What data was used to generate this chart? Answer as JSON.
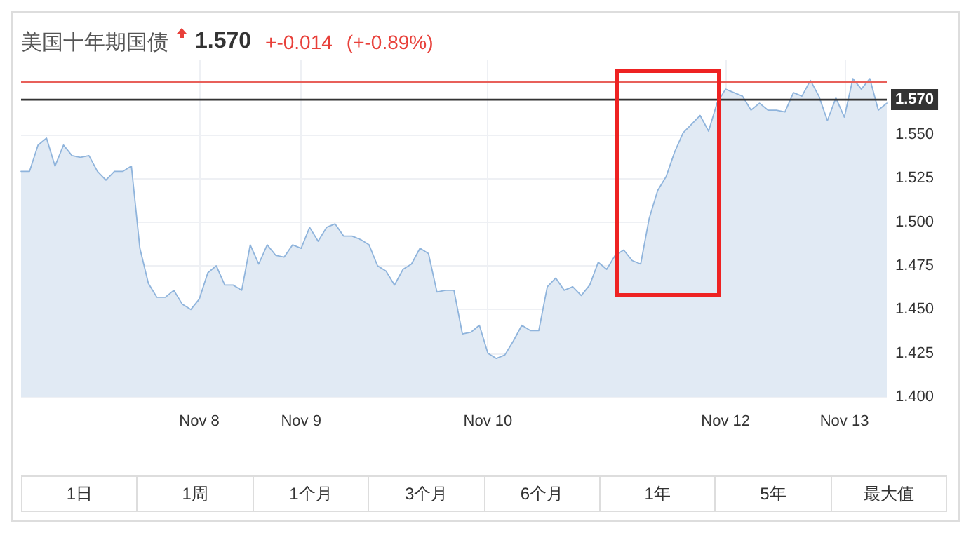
{
  "chart_data": {
    "type": "area",
    "title": "美国十年期国债",
    "annotations": [
      "1.570",
      "+-0.014",
      "(+-0.89%)",
      "1日",
      "1周",
      "1个月",
      "3个月",
      "6个月",
      "1年",
      "5年",
      "最大值"
    ],
    "categories": [
      null,
      null,
      null,
      null,
      null,
      null,
      null,
      null,
      null,
      null,
      null,
      null,
      null,
      null,
      null,
      null,
      null,
      null,
      null,
      null,
      null,
      "Nov 8",
      null,
      null,
      null,
      null,
      null,
      null,
      null,
      null,
      null,
      null,
      null,
      "Nov 9",
      null,
      null,
      null,
      null,
      null,
      null,
      null,
      null,
      null,
      null,
      null,
      null,
      null,
      null,
      null,
      null,
      null,
      null,
      null,
      null,
      null,
      "Nov 10",
      null,
      null,
      null,
      null,
      null,
      null,
      null,
      null,
      null,
      null,
      null,
      null,
      null,
      null,
      null,
      null,
      null,
      null,
      null,
      null,
      null,
      null,
      null,
      null,
      null,
      null,
      null,
      "Nov 12",
      null,
      null,
      null,
      null,
      null,
      null,
      null,
      null,
      null,
      null,
      null,
      null,
      null,
      "Nov 13",
      null,
      null,
      null,
      null,
      null
    ],
    "series": [
      {
        "color": "#8fb4dc",
        "values": [
          1.529,
          1.529,
          1.544,
          1.548,
          1.532,
          1.544,
          1.538,
          1.537,
          1.538,
          1.529,
          1.524,
          1.529,
          1.529,
          1.532,
          1.485,
          1.465,
          1.457,
          1.457,
          1.461,
          1.453,
          1.45,
          1.456,
          1.471,
          1.475,
          1.464,
          1.464,
          1.461,
          1.487,
          1.476,
          1.487,
          1.481,
          1.48,
          1.487,
          1.485,
          1.497,
          1.489,
          1.497,
          1.499,
          1.492,
          1.492,
          1.49,
          1.487,
          1.475,
          1.472,
          1.464,
          1.473,
          1.476,
          1.485,
          1.482,
          1.46,
          1.461,
          1.461,
          1.436,
          1.437,
          1.441,
          1.425,
          1.422,
          1.424,
          1.432,
          1.441,
          1.438,
          1.438,
          1.463,
          1.468,
          1.461,
          1.463,
          1.458,
          1.464,
          1.477,
          1.473,
          1.481,
          1.484,
          1.478,
          1.476,
          1.502,
          1.518,
          1.526,
          1.54,
          1.551,
          1.556,
          1.561,
          1.552,
          1.568,
          1.576,
          1.574,
          1.572,
          1.564,
          1.568,
          1.564,
          1.564,
          1.563,
          1.574,
          1.572,
          1.581,
          1.572,
          1.558,
          1.571,
          1.56,
          1.582,
          1.576,
          1.582,
          1.564,
          1.568
        ]
      }
    ],
    "ylim": [
      1.4,
      1.5925
    ],
    "yticks": [
      {
        "value": 1.4,
        "label": "1.400"
      },
      {
        "value": 1.425,
        "label": "1.425"
      },
      {
        "value": 1.45,
        "label": "1.450"
      },
      {
        "value": 1.475,
        "label": "1.475"
      },
      {
        "value": 1.5,
        "label": "1.500"
      },
      {
        "value": 1.525,
        "label": "1.525"
      },
      {
        "value": 1.55,
        "label": "1.550"
      }
    ],
    "ref_lines": [
      {
        "axis": "y",
        "value": 1.58,
        "label": null,
        "color": "#e8605a"
      },
      {
        "axis": "y",
        "value": 1.57,
        "label": "1.570",
        "color": "#333333"
      }
    ],
    "grid": true,
    "marker": "none",
    "line_style": "solid"
  }
}
